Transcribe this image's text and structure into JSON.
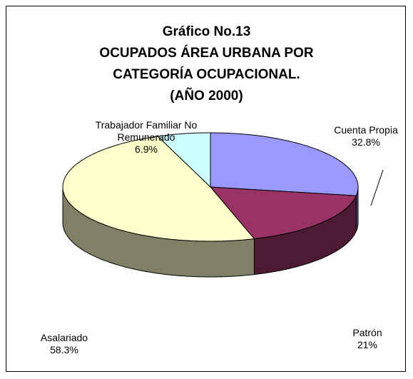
{
  "chart_data": {
    "type": "pie3d",
    "title": [
      "Gráfico No.13",
      "OCUPADOS ÁREA URBANA POR",
      "CATEGORÍA OCUPACIONAL.",
      "(AÑO 2000)"
    ],
    "categories": [
      "Cuenta Propia",
      "Patrón",
      "Asalariado",
      "Trabajador Familiar No Remunerado"
    ],
    "values": [
      32.8,
      21,
      58.3,
      6.9
    ],
    "value_labels": [
      "32.8%",
      "21%",
      "58.3%",
      "6.9%"
    ],
    "colors": [
      "#9999ff",
      "#993366",
      "#ffffcc",
      "#ccffff"
    ]
  }
}
